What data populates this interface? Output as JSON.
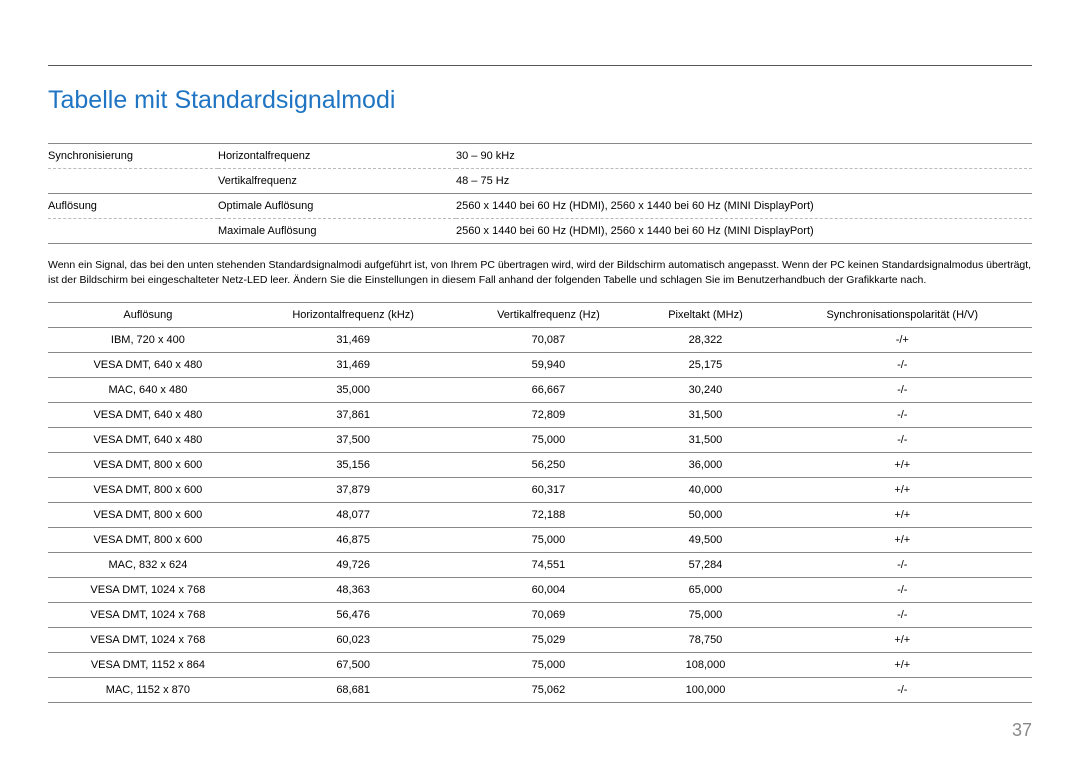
{
  "title": "Tabelle mit Standardsignalmodi",
  "spec": {
    "rows": [
      {
        "cat": "Synchronisierung",
        "label": "Horizontalfrequenz",
        "value": "30 – 90 kHz",
        "type": "section"
      },
      {
        "cat": "",
        "label": "Vertikalfrequenz",
        "value": "48 – 75 Hz",
        "type": "dash"
      },
      {
        "cat": "Auflösung",
        "label": "Optimale Auflösung",
        "value": "2560 x 1440 bei 60 Hz (HDMI), 2560 x 1440 bei 60 Hz (MINI DisplayPort)",
        "type": "section"
      },
      {
        "cat": "",
        "label": "Maximale Auflösung",
        "value": "2560 x 1440 bei 60 Hz (HDMI), 2560 x 1440 bei 60 Hz (MINI DisplayPort)",
        "type": "dash"
      }
    ]
  },
  "note": "Wenn ein Signal, das bei den unten stehenden Standardsignalmodi aufgeführt ist, von Ihrem PC übertragen wird, wird der Bildschirm automatisch angepasst. Wenn der PC keinen Standardsignalmodus überträgt, ist der Bildschirm bei eingeschalteter Netz-LED leer. Ändern Sie die Einstellungen in diesem Fall anhand der folgenden Tabelle und schlagen Sie im Benutzerhandbuch der Grafikkarte nach.",
  "table": {
    "columns": [
      "Auflösung",
      "Horizontalfrequenz (kHz)",
      "Vertikalfrequenz (Hz)",
      "Pixeltakt (MHz)",
      "Synchronisationspolarität (H/V)"
    ],
    "rows": [
      [
        "IBM, 720 x 400",
        "31,469",
        "70,087",
        "28,322",
        "-/+"
      ],
      [
        "VESA DMT, 640 x 480",
        "31,469",
        "59,940",
        "25,175",
        "-/-"
      ],
      [
        "MAC, 640 x 480",
        "35,000",
        "66,667",
        "30,240",
        "-/-"
      ],
      [
        "VESA DMT, 640 x 480",
        "37,861",
        "72,809",
        "31,500",
        "-/-"
      ],
      [
        "VESA DMT, 640 x 480",
        "37,500",
        "75,000",
        "31,500",
        "-/-"
      ],
      [
        "VESA DMT, 800 x 600",
        "35,156",
        "56,250",
        "36,000",
        "+/+"
      ],
      [
        "VESA DMT, 800 x 600",
        "37,879",
        "60,317",
        "40,000",
        "+/+"
      ],
      [
        "VESA DMT, 800 x 600",
        "48,077",
        "72,188",
        "50,000",
        "+/+"
      ],
      [
        "VESA DMT, 800 x 600",
        "46,875",
        "75,000",
        "49,500",
        "+/+"
      ],
      [
        "MAC, 832 x 624",
        "49,726",
        "74,551",
        "57,284",
        "-/-"
      ],
      [
        "VESA DMT, 1024 x 768",
        "48,363",
        "60,004",
        "65,000",
        "-/-"
      ],
      [
        "VESA DMT, 1024 x 768",
        "56,476",
        "70,069",
        "75,000",
        "-/-"
      ],
      [
        "VESA DMT, 1024 x 768",
        "60,023",
        "75,029",
        "78,750",
        "+/+"
      ],
      [
        "VESA DMT, 1152 x 864",
        "67,500",
        "75,000",
        "108,000",
        "+/+"
      ],
      [
        "MAC, 1152 x 870",
        "68,681",
        "75,062",
        "100,000",
        "-/-"
      ]
    ]
  },
  "pageNumber": "37"
}
